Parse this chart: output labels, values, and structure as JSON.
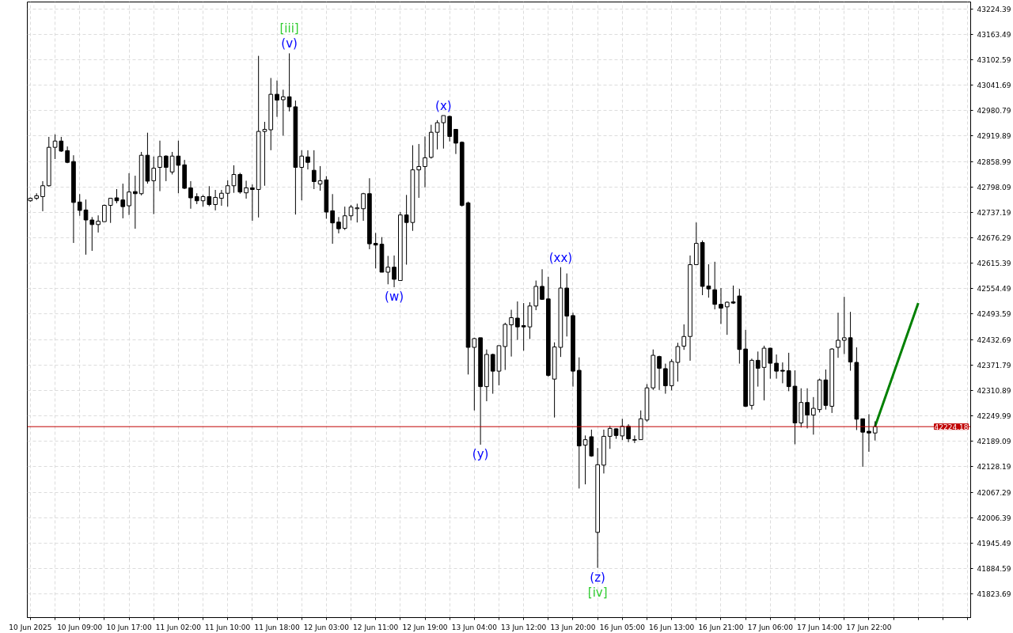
{
  "chart_data": {
    "type": "candlestick",
    "categories": [
      "10 Jun 2025",
      null,
      null,
      null,
      null,
      null,
      null,
      null,
      "10 Jun 09:00",
      null,
      null,
      null,
      null,
      null,
      null,
      null,
      "10 Jun 17:00",
      null,
      null,
      null,
      null,
      null,
      null,
      null,
      "11 Jun 02:00",
      null,
      null,
      null,
      null,
      null,
      null,
      null,
      "11 Jun 10:00",
      null,
      null,
      null,
      null,
      null,
      null,
      null,
      "11 Jun 18:00",
      null,
      null,
      null,
      null,
      null,
      null,
      null,
      "12 Jun 03:00",
      null,
      null,
      null,
      null,
      null,
      null,
      null,
      "12 Jun 11:00",
      null,
      null,
      null,
      null,
      null,
      null,
      null,
      "12 Jun 19:00",
      null,
      null,
      null,
      null,
      null,
      null,
      null,
      "13 Jun 04:00",
      null,
      null,
      null,
      null,
      null,
      null,
      null,
      "13 Jun 12:00",
      null,
      null,
      null,
      null,
      null,
      null,
      null,
      "13 Jun 20:00",
      null,
      null,
      null,
      null,
      null,
      null,
      null,
      "16 Jun 05:00",
      null,
      null,
      null,
      null,
      null,
      null,
      null,
      "16 Jun 13:00",
      null,
      null,
      null,
      null,
      null,
      null,
      null,
      "16 Jun 21:00",
      null,
      null,
      null,
      null,
      null,
      null,
      null,
      "17 Jun 06:00",
      null,
      null,
      null,
      null,
      null,
      null,
      null,
      "17 Jun 14:00",
      null,
      null,
      null,
      null,
      null,
      null,
      null,
      "17 Jun 22:00",
      null,
      null,
      null,
      null,
      null,
      null,
      null,
      null,
      null,
      null,
      null,
      null,
      null,
      null,
      null,
      null
    ],
    "ohlc": [
      [
        42765,
        42773,
        42763,
        42771
      ],
      [
        42771,
        42783,
        42767,
        42777
      ],
      [
        42775,
        42812,
        42740,
        42801
      ],
      [
        42801,
        42918,
        42799,
        42893
      ],
      [
        42893,
        42924,
        42865,
        42908
      ],
      [
        42908,
        42918,
        42882,
        42884
      ],
      [
        42885,
        42895,
        42855,
        42857
      ],
      [
        42859,
        42874,
        42664,
        42761
      ],
      [
        42762,
        42781,
        42729,
        42742
      ],
      [
        42743,
        42768,
        42636,
        42719
      ],
      [
        42719,
        42726,
        42645,
        42708
      ],
      [
        42708,
        42730,
        42689,
        42716
      ],
      [
        42715,
        42756,
        42715,
        42754
      ],
      [
        42754,
        42771,
        42712,
        42771
      ],
      [
        42772,
        42793,
        42759,
        42765
      ],
      [
        42767,
        42806,
        42723,
        42751
      ],
      [
        42753,
        42831,
        42731,
        42786
      ],
      [
        42787,
        42825,
        42698,
        42782
      ],
      [
        42782,
        42882,
        42778,
        42874
      ],
      [
        42874,
        42928,
        42806,
        42812
      ],
      [
        42813,
        42871,
        42733,
        42843
      ],
      [
        42845,
        42909,
        42788,
        42871
      ],
      [
        42872,
        42874,
        42812,
        42845
      ],
      [
        42834,
        42882,
        42828,
        42872
      ],
      [
        42872,
        42909,
        42783,
        42850
      ],
      [
        42851,
        42863,
        42793,
        42795
      ],
      [
        42796,
        42812,
        42746,
        42772
      ],
      [
        42775,
        42783,
        42757,
        42765
      ],
      [
        42765,
        42779,
        42751,
        42775
      ],
      [
        42775,
        42800,
        42752,
        42756
      ],
      [
        42756,
        42791,
        42742,
        42773
      ],
      [
        42771,
        42791,
        42753,
        42783
      ],
      [
        42783,
        42814,
        42751,
        42801
      ],
      [
        42801,
        42850,
        42784,
        42828
      ],
      [
        42828,
        42832,
        42782,
        42786
      ],
      [
        42784,
        42813,
        42770,
        42796
      ],
      [
        42796,
        42804,
        42717,
        42792
      ],
      [
        42792,
        43112,
        42725,
        42931
      ],
      [
        42931,
        42954,
        42801,
        42936
      ],
      [
        42935,
        43059,
        42886,
        43020
      ],
      [
        43020,
        43053,
        42966,
        43006
      ],
      [
        43007,
        43031,
        42921,
        43014
      ],
      [
        43014,
        43118,
        42979,
        42990
      ],
      [
        42990,
        43005,
        42732,
        42845
      ],
      [
        42845,
        42886,
        42766,
        42872
      ],
      [
        42870,
        42886,
        42840,
        42857
      ],
      [
        42838,
        42886,
        42793,
        42811
      ],
      [
        42805,
        42848,
        42789,
        42813
      ],
      [
        42815,
        42824,
        42722,
        42738
      ],
      [
        42741,
        42781,
        42662,
        42712
      ],
      [
        42714,
        42726,
        42687,
        42698
      ],
      [
        42699,
        42751,
        42695,
        42729
      ],
      [
        42729,
        42755,
        42718,
        42750
      ],
      [
        42746,
        42758,
        42713,
        42748
      ],
      [
        42746,
        42784,
        42717,
        42782
      ],
      [
        42782,
        42819,
        42649,
        42662
      ],
      [
        42663,
        42688,
        42603,
        42659
      ],
      [
        42661,
        42678,
        42594,
        42594
      ],
      [
        42594,
        42633,
        42565,
        42606
      ],
      [
        42606,
        42634,
        42558,
        42577
      ],
      [
        42574,
        42738,
        42574,
        42731
      ],
      [
        42731,
        42779,
        42612,
        42713
      ],
      [
        42713,
        42898,
        42693,
        42839
      ],
      [
        42839,
        42901,
        42772,
        42847
      ],
      [
        42847,
        42919,
        42797,
        42868
      ],
      [
        42869,
        42947,
        42866,
        42929
      ],
      [
        42929,
        42958,
        42888,
        42952
      ],
      [
        42952,
        42969,
        42890,
        42969
      ],
      [
        42967,
        42969,
        42907,
        42919
      ],
      [
        42936,
        42936,
        42877,
        42903
      ],
      [
        42905,
        42907,
        42751,
        42754
      ],
      [
        42760,
        42763,
        42349,
        42414
      ],
      [
        42414,
        42437,
        42263,
        42435
      ],
      [
        42437,
        42437,
        42181,
        42320
      ],
      [
        42320,
        42409,
        42285,
        42397
      ],
      [
        42397,
        42399,
        42303,
        42357
      ],
      [
        42357,
        42418,
        42323,
        42418
      ],
      [
        42416,
        42473,
        42360,
        42469
      ],
      [
        42468,
        42504,
        42392,
        42485
      ],
      [
        42484,
        42524,
        42432,
        42463
      ],
      [
        42466,
        42520,
        42406,
        42463
      ],
      [
        42463,
        42522,
        42434,
        42513
      ],
      [
        42513,
        42574,
        42503,
        42560
      ],
      [
        42560,
        42601,
        42528,
        42529
      ],
      [
        42530,
        42583,
        42344,
        42347
      ],
      [
        42338,
        42426,
        42246,
        42415
      ],
      [
        42414,
        42606,
        42391,
        42556
      ],
      [
        42556,
        42591,
        42440,
        42489
      ],
      [
        42490,
        42497,
        42320,
        42357
      ],
      [
        42359,
        42390,
        42076,
        42178
      ],
      [
        42180,
        42203,
        42086,
        42193
      ],
      [
        42200,
        42217,
        42152,
        42154
      ],
      [
        41971,
        42173,
        41886,
        42133
      ],
      [
        42132,
        42217,
        42112,
        42201
      ],
      [
        42201,
        42226,
        42171,
        42220
      ],
      [
        42219,
        42220,
        42195,
        42203
      ],
      [
        42202,
        42243,
        42192,
        42225
      ],
      [
        42225,
        42230,
        42187,
        42195
      ],
      [
        42193,
        42203,
        42185,
        42192
      ],
      [
        42193,
        42263,
        42193,
        42243
      ],
      [
        42240,
        42326,
        42236,
        42317
      ],
      [
        42317,
        42409,
        42312,
        42395
      ],
      [
        42392,
        42394,
        42312,
        42364
      ],
      [
        42363,
        42375,
        42303,
        42322
      ],
      [
        42322,
        42386,
        42311,
        42380
      ],
      [
        42378,
        42425,
        42332,
        42416
      ],
      [
        42417,
        42469,
        42408,
        42440
      ],
      [
        42440,
        42634,
        42382,
        42612
      ],
      [
        42612,
        42713,
        42612,
        42663
      ],
      [
        42665,
        42670,
        42539,
        42560
      ],
      [
        42561,
        42613,
        42533,
        42554
      ],
      [
        42552,
        42619,
        42505,
        42517
      ],
      [
        42517,
        42556,
        42470,
        42508
      ],
      [
        42511,
        42524,
        42444,
        42522
      ],
      [
        42523,
        42562,
        42518,
        42520
      ],
      [
        42537,
        42554,
        42375,
        42409
      ],
      [
        42410,
        42456,
        42271,
        42273
      ],
      [
        42275,
        42387,
        42265,
        42383
      ],
      [
        42383,
        42404,
        42320,
        42364
      ],
      [
        42366,
        42418,
        42287,
        42412
      ],
      [
        42412,
        42413,
        42339,
        42376
      ],
      [
        42376,
        42397,
        42339,
        42357
      ],
      [
        42359,
        42378,
        42328,
        42357
      ],
      [
        42358,
        42401,
        42309,
        42320
      ],
      [
        42321,
        42359,
        42182,
        42233
      ],
      [
        42233,
        42316,
        42222,
        42282
      ],
      [
        42282,
        42316,
        42220,
        42252
      ],
      [
        42252,
        42295,
        42205,
        42268
      ],
      [
        42265,
        42339,
        42258,
        42336
      ],
      [
        42336,
        42361,
        42265,
        42275
      ],
      [
        42273,
        42412,
        42257,
        42410
      ],
      [
        42414,
        42497,
        42389,
        42431
      ],
      [
        42431,
        42535,
        42398,
        42437
      ],
      [
        42437,
        42499,
        42358,
        42379
      ],
      [
        42378,
        42414,
        42216,
        42242
      ],
      [
        42243,
        42243,
        42128,
        42211
      ],
      [
        42213,
        42254,
        42164,
        42209
      ],
      [
        42209,
        42237,
        42191,
        42224
      ],
      null,
      null,
      null,
      null,
      null,
      null,
      null,
      null,
      null,
      null,
      null,
      null,
      null,
      null,
      null
    ],
    "series": [
      {
        "type": "line",
        "values": [
          null,
          null,
          null,
          null,
          null,
          null,
          null,
          null,
          null,
          null,
          null,
          null,
          null,
          null,
          null,
          null,
          null,
          null,
          null,
          null,
          null,
          null,
          null,
          null,
          null,
          null,
          null,
          null,
          null,
          null,
          null,
          null,
          null,
          null,
          null,
          null,
          null,
          null,
          null,
          null,
          null,
          null,
          null,
          null,
          null,
          null,
          null,
          null,
          null,
          null,
          null,
          null,
          null,
          null,
          null,
          null,
          null,
          null,
          null,
          null,
          null,
          null,
          null,
          null,
          null,
          null,
          null,
          null,
          null,
          null,
          null,
          null,
          null,
          null,
          null,
          null,
          null,
          null,
          null,
          null,
          null,
          null,
          null,
          null,
          null,
          null,
          null,
          null,
          null,
          null,
          null,
          null,
          null,
          null,
          null,
          null,
          null,
          null,
          null,
          null,
          null,
          null,
          null,
          null,
          null,
          null,
          null,
          null,
          null,
          null,
          null,
          null,
          null,
          null,
          null,
          null,
          null,
          null,
          null,
          null,
          null,
          null,
          null,
          null,
          null,
          null,
          null,
          null,
          null,
          null,
          null,
          null,
          null,
          null,
          null,
          null,
          null,
          42225,
          null,
          null,
          null,
          null,
          null,
          null,
          42520,
          null,
          null,
          null,
          null,
          null,
          null,
          null,
          null
        ],
        "color": "#008000"
      }
    ],
    "ylim": [
      41767,
      43241
    ],
    "yticks": [
      43224.39,
      43163.49,
      43102.59,
      43041.69,
      42980.79,
      42919.89,
      42858.99,
      42798.09,
      42737.19,
      42676.29,
      42615.39,
      42554.49,
      42493.59,
      42432.69,
      42371.79,
      42310.89,
      42249.99,
      42189.09,
      42128.19,
      42067.29,
      42006.39,
      41945.49,
      41884.59,
      41823.69
    ],
    "grid": true,
    "ref_lines": [
      {
        "axis": "y",
        "value": 42224.18,
        "label": "42224.18",
        "color": "#c00000"
      }
    ],
    "annotations": [
      "[iii]",
      "(v)",
      "(w)",
      "(x)",
      "(y)",
      "(xx)",
      "(z)",
      "[iv]"
    ]
  }
}
